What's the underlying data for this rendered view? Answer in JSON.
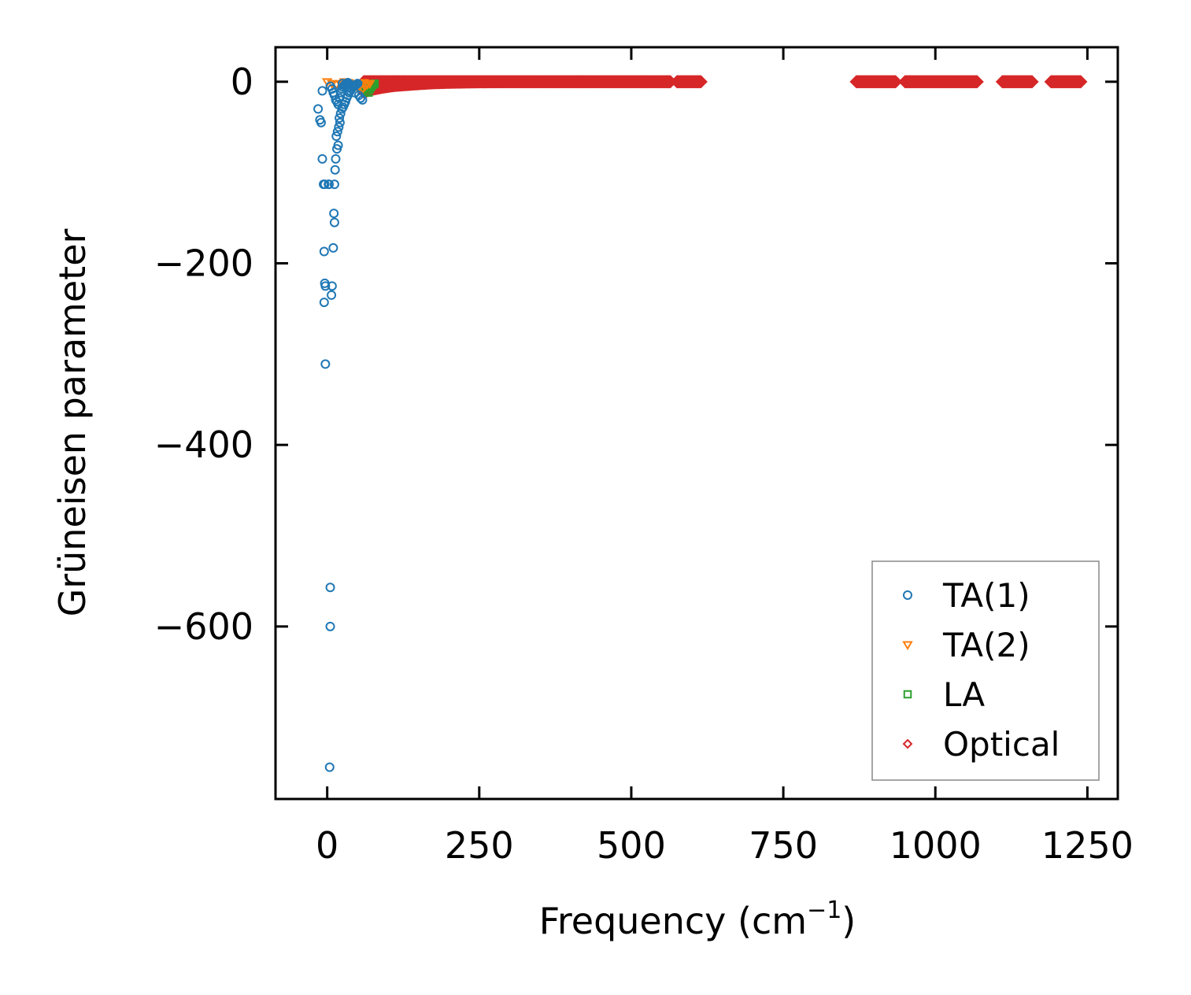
{
  "chart_data": {
    "type": "scatter",
    "xlabel": "Frequency (cm",
    "xlabel_sup": "−1",
    "xlabel_close": ")",
    "ylabel": "Grüneisen parameter",
    "xlim": [
      -85,
      1300
    ],
    "ylim": [
      -790,
      38
    ],
    "xticks": [
      0,
      250,
      500,
      750,
      1000,
      1250
    ],
    "xtick_labels": [
      "0",
      "250",
      "500",
      "750",
      "1000",
      "1250"
    ],
    "yticks": [
      0,
      -200,
      -400,
      -600
    ],
    "ytick_labels": [
      "0",
      "−200",
      "−400",
      "−600"
    ],
    "grid": false,
    "legend_position": "lower right",
    "colors": {
      "TA(1)": "#1f77b4",
      "TA(2)": "#ff7f0e",
      "LA": "#2ca02c",
      "Optical": "#d62728"
    },
    "series": [
      {
        "name": "TA(1)",
        "marker": "circle",
        "points": [
          [
            -15,
            -30
          ],
          [
            -12,
            -42
          ],
          [
            -10,
            -45
          ],
          [
            -8,
            -85
          ],
          [
            -6,
            -113
          ],
          [
            -4,
            -113
          ],
          [
            -5,
            -187
          ],
          [
            -4,
            -222
          ],
          [
            -3,
            -225
          ],
          [
            -5,
            -243
          ],
          [
            -3,
            -311
          ],
          [
            2,
            -113
          ],
          [
            3,
            -113
          ],
          [
            5,
            -557
          ],
          [
            5,
            -600
          ],
          [
            4,
            -755
          ],
          [
            7,
            -235
          ],
          [
            8,
            -225
          ],
          [
            10,
            -183
          ],
          [
            11,
            -145
          ],
          [
            12,
            -155
          ],
          [
            12,
            -113
          ],
          [
            13,
            -97
          ],
          [
            14,
            -85
          ],
          [
            16,
            -74
          ],
          [
            18,
            -70
          ],
          [
            15,
            -60
          ],
          [
            17,
            -55
          ],
          [
            19,
            -50
          ],
          [
            21,
            -45
          ],
          [
            20,
            -40
          ],
          [
            22,
            -35
          ],
          [
            24,
            -30
          ],
          [
            26,
            -28
          ],
          [
            28,
            -25
          ],
          [
            30,
            -22
          ],
          [
            32,
            -18
          ],
          [
            34,
            -15
          ],
          [
            36,
            -12
          ],
          [
            38,
            -10
          ],
          [
            40,
            -8
          ],
          [
            42,
            -6
          ],
          [
            44,
            -5
          ],
          [
            46,
            -4
          ],
          [
            48,
            -3
          ],
          [
            50,
            -2
          ],
          [
            -8,
            -10
          ],
          [
            5,
            -5
          ],
          [
            8,
            -8
          ],
          [
            10,
            -12
          ],
          [
            12,
            -15
          ],
          [
            14,
            -20
          ],
          [
            16,
            -22
          ],
          [
            18,
            -25
          ],
          [
            20,
            -18
          ],
          [
            22,
            -12
          ],
          [
            24,
            -8
          ],
          [
            26,
            -6
          ],
          [
            28,
            -4
          ],
          [
            30,
            -3
          ],
          [
            32,
            -2
          ],
          [
            34,
            -1
          ],
          [
            36,
            -2
          ],
          [
            38,
            -3
          ],
          [
            40,
            -4
          ],
          [
            55,
            -18
          ],
          [
            58,
            -20
          ],
          [
            52,
            -15
          ],
          [
            45,
            -12
          ],
          [
            35,
            -6
          ],
          [
            25,
            -2
          ]
        ]
      },
      {
        "name": "TA(2)",
        "marker": "triangle-down",
        "points": [
          [
            0,
            0
          ],
          [
            8,
            -2
          ],
          [
            15,
            -3
          ],
          [
            22,
            -2
          ],
          [
            30,
            -1
          ],
          [
            38,
            -2
          ],
          [
            45,
            -4
          ],
          [
            52,
            -6
          ],
          [
            58,
            -8
          ],
          [
            62,
            -5
          ],
          [
            66,
            -3
          ],
          [
            70,
            -2
          ],
          [
            28,
            0
          ],
          [
            35,
            -1
          ],
          [
            42,
            -3
          ],
          [
            48,
            -5
          ],
          [
            55,
            -2
          ],
          [
            60,
            -1
          ]
        ]
      },
      {
        "name": "LA",
        "marker": "square",
        "points": [
          [
            50,
            -3
          ],
          [
            55,
            -5
          ],
          [
            60,
            -7
          ],
          [
            65,
            -10
          ],
          [
            68,
            -12
          ],
          [
            70,
            -8
          ],
          [
            72,
            -6
          ],
          [
            74,
            -4
          ],
          [
            76,
            -3
          ],
          [
            78,
            -2
          ],
          [
            62,
            -4
          ],
          [
            66,
            -5
          ]
        ]
      },
      {
        "name": "Optical",
        "marker": "diamond",
        "ranges": [
          [
            60,
            380,
            0.5
          ],
          [
            380,
            410,
            0.5
          ],
          [
            410,
            520,
            0.5
          ],
          [
            520,
            565,
            0.5
          ],
          [
            575,
            615,
            0.5
          ],
          [
            870,
            935,
            0.5
          ],
          [
            950,
            1070,
            0.5
          ],
          [
            1110,
            1160,
            0.5
          ],
          [
            1190,
            1240,
            0.5
          ]
        ],
        "ramp": [
          [
            60,
            -12
          ],
          [
            75,
            -9
          ],
          [
            90,
            -7
          ],
          [
            110,
            -5
          ],
          [
            130,
            -4
          ],
          [
            150,
            -3
          ],
          [
            175,
            -2
          ],
          [
            200,
            -1.5
          ],
          [
            240,
            -1
          ],
          [
            300,
            -0.5
          ]
        ]
      }
    ]
  }
}
